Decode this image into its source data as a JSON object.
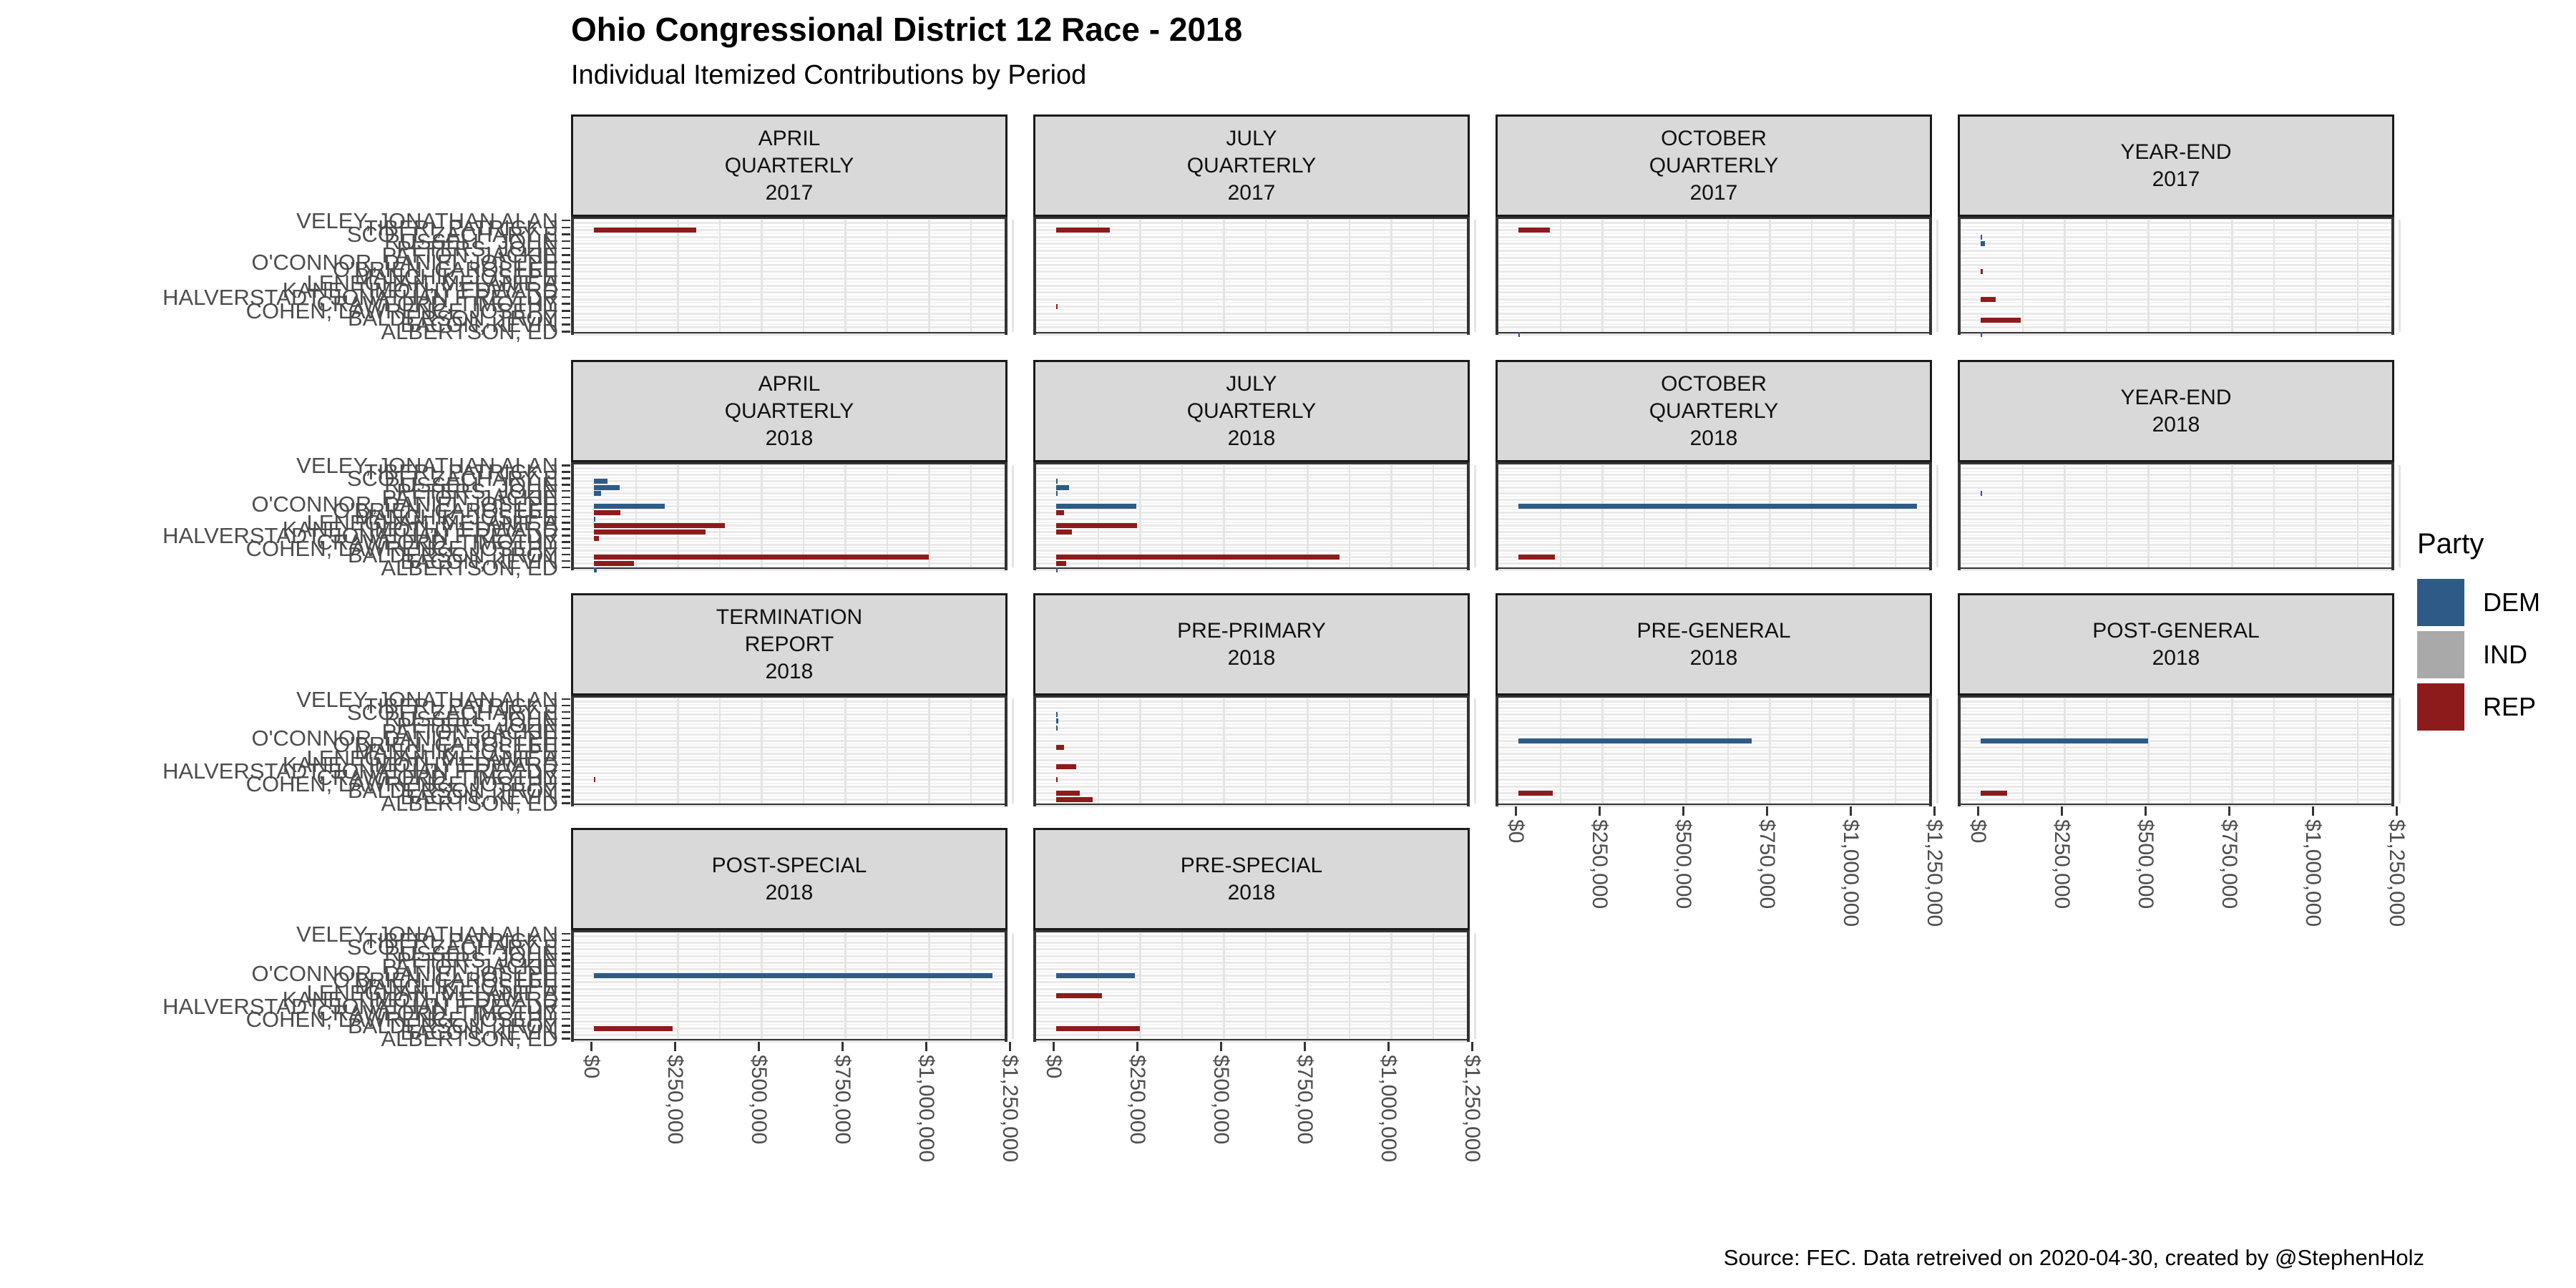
{
  "page": {
    "title": "Ohio Congressional District 12 Race - 2018",
    "subtitle": "Individual Itemized Contributions by Period",
    "caption": "Source: FEC. Data retreived on 2020-04-30, created by @StephenHolz"
  },
  "legend": {
    "title": "Party",
    "entries": [
      {
        "label": "DEM",
        "color": "#2E5A87"
      },
      {
        "label": "IND",
        "color": "#A9A9A9"
      },
      {
        "label": "REP",
        "color": "#8E1B1B"
      }
    ]
  },
  "chart_data": {
    "type": "bar",
    "orientation": "horizontal",
    "xlabel": "",
    "ylabel": "",
    "x_tick_labels": [
      "$0",
      "$250,000",
      "$500,000",
      "$750,000",
      "$1,000,000",
      "$1,250,000"
    ],
    "x_tick_values": [
      0,
      250000,
      500000,
      750000,
      1000000,
      1250000
    ],
    "x_max": 1250000,
    "party_colors": {
      "DEM": "#2E5A87",
      "IND": "#A9A9A9",
      "REP": "#8E1B1B"
    },
    "candidates": [
      "VELEY, JONATHAN ALAN",
      "TIBERI, PATRICK J",
      "SCOTT, ZACHARY E",
      "RUSSELL, JOHN",
      "PETERS, JOHN",
      "PATTON, JACKIE",
      "O'CONNOR, DANIEL JOSEPH",
      "O'BRIEN, CAROL LEE",
      "MANCHIK, JOSEPH",
      "LENEGHAN, MELANIE A",
      "KANE, TIMOTHY EDWARD",
      "HALVERSTADT, JONATHAN F REV DR",
      "CRAWFORD, TIMOTHY",
      "COHEN, LAWRENCE JOSEPH",
      "BALDERSON, TROY",
      "BACON, KEVIN",
      "ALBERTSON, ED"
    ],
    "facets": [
      {
        "label": "APRIL QUARTERLY 2017",
        "lines": [
          "APRIL",
          "QUARTERLY",
          "2017"
        ],
        "row": 0,
        "col": 0,
        "x_axis": false,
        "bars": [
          {
            "c": 1,
            "party": "REP",
            "v": 305000
          }
        ]
      },
      {
        "label": "JULY QUARTERLY 2017",
        "lines": [
          "JULY",
          "QUARTERLY",
          "2017"
        ],
        "row": 0,
        "col": 1,
        "x_axis": false,
        "bars": [
          {
            "c": 1,
            "party": "REP",
            "v": 160000
          },
          {
            "c": 12,
            "party": "REP",
            "v": 4000
          }
        ]
      },
      {
        "label": "OCTOBER QUARTERLY 2017",
        "lines": [
          "OCTOBER",
          "QUARTERLY",
          "2017"
        ],
        "row": 0,
        "col": 2,
        "x_axis": false,
        "bars": [
          {
            "c": 1,
            "party": "REP",
            "v": 95000
          },
          {
            "c": 16,
            "party": "DEM",
            "v": 2000
          }
        ]
      },
      {
        "label": "YEAR-END 2017",
        "lines": [
          "YEAR-END",
          "2017"
        ],
        "row": 0,
        "col": 3,
        "x_axis": false,
        "bars": [
          {
            "c": 2,
            "party": "DEM",
            "v": 3000
          },
          {
            "c": 3,
            "party": "DEM",
            "v": 13000
          },
          {
            "c": 7,
            "party": "REP",
            "v": 7000
          },
          {
            "c": 11,
            "party": "REP",
            "v": 45000
          },
          {
            "c": 14,
            "party": "REP",
            "v": 120000
          },
          {
            "c": 16,
            "party": "DEM",
            "v": 2000
          }
        ]
      },
      {
        "label": "APRIL QUARTERLY 2018",
        "lines": [
          "APRIL",
          "QUARTERLY",
          "2018"
        ],
        "row": 1,
        "col": 0,
        "x_axis": false,
        "bars": [
          {
            "c": 2,
            "party": "DEM",
            "v": 41000
          },
          {
            "c": 3,
            "party": "DEM",
            "v": 76000
          },
          {
            "c": 4,
            "party": "DEM",
            "v": 21000
          },
          {
            "c": 6,
            "party": "DEM",
            "v": 211000
          },
          {
            "c": 7,
            "party": "REP",
            "v": 80000
          },
          {
            "c": 8,
            "party": "DEM",
            "v": 3000
          },
          {
            "c": 9,
            "party": "REP",
            "v": 390000
          },
          {
            "c": 10,
            "party": "REP",
            "v": 334000
          },
          {
            "c": 11,
            "party": "REP",
            "v": 15000
          },
          {
            "c": 14,
            "party": "REP",
            "v": 1000000
          },
          {
            "c": 15,
            "party": "REP",
            "v": 119000
          },
          {
            "c": 16,
            "party": "DEM",
            "v": 9000
          }
        ]
      },
      {
        "label": "JULY QUARTERLY 2018",
        "lines": [
          "JULY",
          "QUARTERLY",
          "2018"
        ],
        "row": 1,
        "col": 1,
        "x_axis": false,
        "bars": [
          {
            "c": 2,
            "party": "DEM",
            "v": 2000
          },
          {
            "c": 3,
            "party": "DEM",
            "v": 39000
          },
          {
            "c": 4,
            "party": "DEM",
            "v": 2000
          },
          {
            "c": 6,
            "party": "DEM",
            "v": 240000
          },
          {
            "c": 7,
            "party": "REP",
            "v": 23000
          },
          {
            "c": 9,
            "party": "REP",
            "v": 242000
          },
          {
            "c": 10,
            "party": "REP",
            "v": 47000
          },
          {
            "c": 14,
            "party": "REP",
            "v": 847000
          },
          {
            "c": 15,
            "party": "REP",
            "v": 30000
          },
          {
            "c": 16,
            "party": "DEM",
            "v": 2000
          }
        ]
      },
      {
        "label": "OCTOBER QUARTERLY 2018",
        "lines": [
          "OCTOBER",
          "QUARTERLY",
          "2018"
        ],
        "row": 1,
        "col": 2,
        "x_axis": false,
        "bars": [
          {
            "c": 6,
            "party": "DEM",
            "v": 1190000
          },
          {
            "c": 14,
            "party": "REP",
            "v": 110000
          }
        ]
      },
      {
        "label": "YEAR-END 2018",
        "lines": [
          "YEAR-END",
          "2018"
        ],
        "row": 1,
        "col": 3,
        "x_axis": false,
        "bars": [
          {
            "c": 4,
            "party": "DEM",
            "v": 2000
          }
        ]
      },
      {
        "label": "TERMINATION REPORT 2018",
        "lines": [
          "TERMINATION",
          "REPORT",
          "2018"
        ],
        "row": 2,
        "col": 0,
        "x_axis": false,
        "bars": [
          {
            "c": 12,
            "party": "REP",
            "v": 2000
          }
        ]
      },
      {
        "label": "PRE-PRIMARY 2018",
        "lines": [
          "PRE-PRIMARY",
          "2018"
        ],
        "row": 2,
        "col": 1,
        "x_axis": false,
        "bars": [
          {
            "c": 2,
            "party": "DEM",
            "v": 2000
          },
          {
            "c": 3,
            "party": "DEM",
            "v": 7000
          },
          {
            "c": 4,
            "party": "DEM",
            "v": 2000
          },
          {
            "c": 7,
            "party": "REP",
            "v": 23000
          },
          {
            "c": 10,
            "party": "REP",
            "v": 59000
          },
          {
            "c": 12,
            "party": "REP",
            "v": 2000
          },
          {
            "c": 14,
            "party": "REP",
            "v": 71000
          },
          {
            "c": 15,
            "party": "REP",
            "v": 110000
          }
        ]
      },
      {
        "label": "PRE-GENERAL 2018",
        "lines": [
          "PRE-GENERAL",
          "2018"
        ],
        "row": 2,
        "col": 2,
        "x_axis": true,
        "bars": [
          {
            "c": 6,
            "party": "DEM",
            "v": 697000
          },
          {
            "c": 14,
            "party": "REP",
            "v": 103000
          }
        ]
      },
      {
        "label": "POST-GENERAL 2018",
        "lines": [
          "POST-GENERAL",
          "2018"
        ],
        "row": 2,
        "col": 3,
        "x_axis": true,
        "bars": [
          {
            "c": 6,
            "party": "DEM",
            "v": 500000
          },
          {
            "c": 14,
            "party": "REP",
            "v": 80000
          }
        ]
      },
      {
        "label": "POST-SPECIAL 2018",
        "lines": [
          "POST-SPECIAL",
          "2018"
        ],
        "row": 3,
        "col": 0,
        "x_axis": true,
        "bars": [
          {
            "c": 6,
            "party": "DEM",
            "v": 1190000
          },
          {
            "c": 14,
            "party": "REP",
            "v": 235000
          }
        ]
      },
      {
        "label": "PRE-SPECIAL 2018",
        "lines": [
          "PRE-SPECIAL",
          "2018"
        ],
        "row": 3,
        "col": 1,
        "x_axis": true,
        "bars": [
          {
            "c": 6,
            "party": "DEM",
            "v": 235000
          },
          {
            "c": 9,
            "party": "REP",
            "v": 136000
          },
          {
            "c": 14,
            "party": "REP",
            "v": 250000
          }
        ]
      }
    ]
  }
}
